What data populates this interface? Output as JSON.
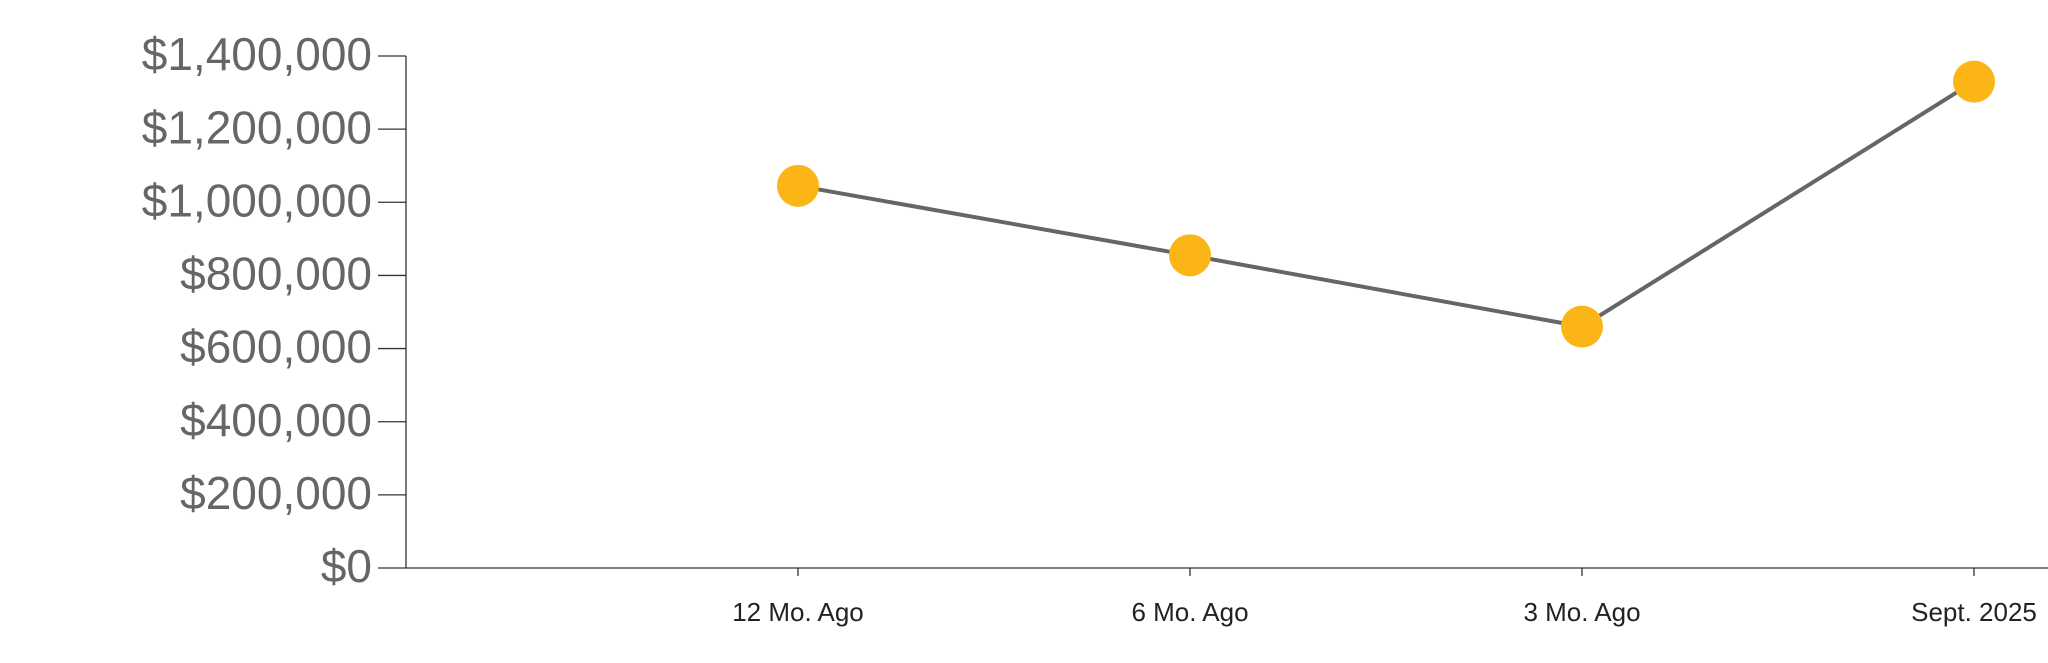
{
  "chart_data": {
    "type": "line",
    "categories": [
      "12 Mo. Ago",
      "6 Mo. Ago",
      "3 Mo. Ago",
      "Sept. 2025"
    ],
    "values": [
      1045000,
      855000,
      660000,
      1330000
    ],
    "color": "#666666",
    "marker_color": "#fbb517",
    "ylim": [
      0,
      1400000
    ],
    "yticks": [
      {
        "value": 0,
        "label": "$0"
      },
      {
        "value": 200000,
        "label": "$200,000"
      },
      {
        "value": 400000,
        "label": "$400,000"
      },
      {
        "value": 600000,
        "label": "$600,000"
      },
      {
        "value": 800000,
        "label": "$800,000"
      },
      {
        "value": 1000000,
        "label": "$1,000,000"
      },
      {
        "value": 1200000,
        "label": "$1,200,000"
      },
      {
        "value": 1400000,
        "label": "$1,400,000"
      }
    ]
  }
}
